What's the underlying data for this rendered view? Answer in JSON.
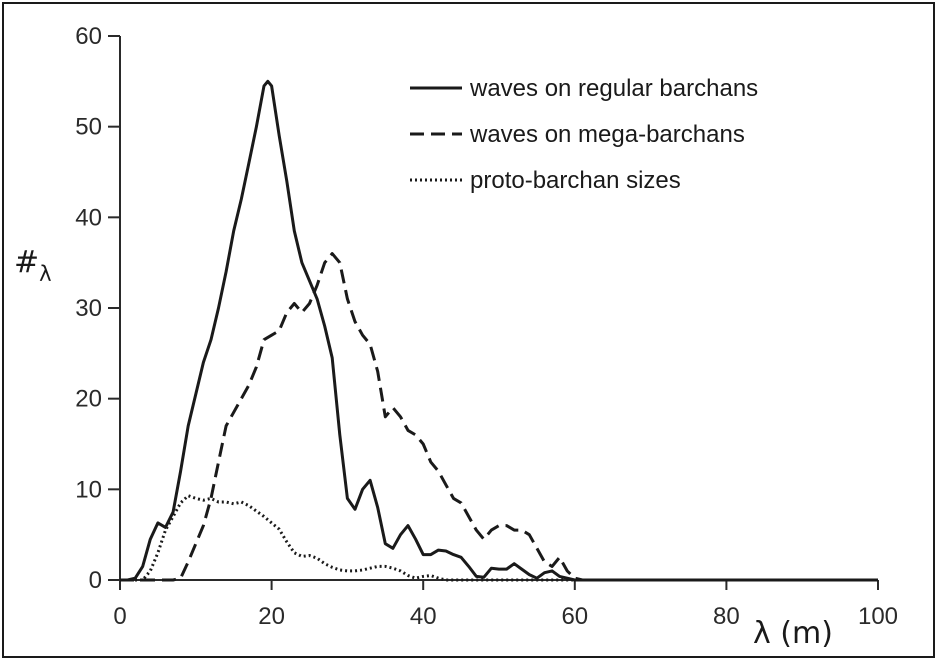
{
  "chart_data": {
    "type": "line",
    "xlabel": "λ (m)",
    "ylabel": "#",
    "ylabel_subscript": "λ",
    "xlim": [
      0,
      100
    ],
    "ylim": [
      0,
      60
    ],
    "xticks": [
      0,
      20,
      40,
      60,
      80,
      100
    ],
    "yticks": [
      0,
      10,
      20,
      30,
      40,
      50,
      60
    ],
    "grid": false,
    "legend_position": "top-right",
    "series": [
      {
        "name": "waves on regular barchans",
        "style": "solid",
        "x": [
          0,
          1,
          2,
          3,
          4,
          5,
          6,
          7,
          8,
          9,
          10,
          11,
          12,
          13,
          14,
          15,
          16,
          17,
          18,
          19,
          19.5,
          20,
          21,
          22,
          23,
          24,
          25,
          26,
          27,
          28,
          29,
          30,
          31,
          32,
          33,
          34,
          35,
          36,
          37,
          38,
          39,
          40,
          41,
          42,
          43,
          44,
          45,
          46,
          47,
          48,
          49,
          50,
          51,
          52,
          53,
          54,
          55,
          56,
          57,
          58,
          59,
          60,
          61,
          62,
          63,
          64,
          100
        ],
        "values": [
          0,
          0,
          0.2,
          1.5,
          4.5,
          6.3,
          5.8,
          7.5,
          12,
          17,
          20.5,
          24,
          26.5,
          30,
          34,
          38.5,
          42,
          46,
          50,
          54.5,
          55,
          54.5,
          49,
          44,
          38.5,
          35,
          33,
          31,
          28,
          24.5,
          16,
          9,
          7.8,
          10,
          11,
          8,
          4,
          3.5,
          5,
          6,
          4.5,
          2.8,
          2.8,
          3.3,
          3.2,
          2.8,
          2.5,
          1.5,
          0.4,
          0.3,
          1.3,
          1.2,
          1.2,
          1.8,
          1.2,
          0.6,
          0.2,
          0.8,
          1.0,
          0.4,
          0.2,
          0,
          0,
          0,
          0,
          0,
          0
        ]
      },
      {
        "name": "waves on mega-barchans",
        "style": "dashed",
        "x": [
          0,
          7,
          8,
          9,
          10,
          11,
          12,
          13,
          14,
          15,
          16,
          17,
          18,
          19,
          20,
          21,
          22,
          23,
          24,
          25,
          26,
          27,
          28,
          29,
          30,
          31,
          32,
          33,
          34,
          35,
          36,
          37,
          38,
          39,
          40,
          41,
          42,
          43,
          44,
          45,
          46,
          47,
          48,
          49,
          50,
          51,
          52,
          53,
          54,
          55,
          56,
          57,
          58,
          59,
          60,
          61,
          62,
          63,
          64,
          100
        ],
        "values": [
          0,
          0,
          0.2,
          2,
          4,
          6,
          9,
          13,
          17,
          18.5,
          20,
          21.5,
          23.5,
          26.5,
          27,
          27.5,
          29.5,
          30.5,
          29.5,
          30.5,
          32.5,
          35,
          36,
          35,
          31,
          28.5,
          27,
          26,
          23,
          18,
          19,
          18,
          16.5,
          16,
          15,
          13,
          12,
          10.5,
          9,
          8.5,
          7,
          5.5,
          4.5,
          5.5,
          6,
          6,
          5.5,
          5.5,
          5,
          3.5,
          2,
          1.5,
          2.5,
          1,
          0.2,
          0,
          0,
          0,
          0,
          0
        ]
      },
      {
        "name": "proto-barchan sizes",
        "style": "dotted",
        "x": [
          0,
          3,
          4,
          5,
          6,
          7,
          8,
          9,
          10,
          11,
          12,
          13,
          14,
          15,
          16,
          17,
          18,
          19,
          20,
          21,
          22,
          23,
          24,
          25,
          26,
          27,
          28,
          29,
          30,
          31,
          32,
          33,
          34,
          35,
          36,
          37,
          38,
          39,
          40,
          41,
          42,
          43,
          44,
          100
        ],
        "values": [
          0,
          0,
          1,
          3,
          5.5,
          7,
          8.5,
          9.3,
          9,
          8.8,
          9,
          8.6,
          8.6,
          8.4,
          8.6,
          8.2,
          7.6,
          7,
          6.3,
          5.6,
          4.2,
          3,
          2.6,
          2.7,
          2.4,
          1.8,
          1.4,
          1.1,
          1.0,
          1.0,
          1.1,
          1.3,
          1.5,
          1.5,
          1.3,
          1.0,
          0.5,
          0.2,
          0.4,
          0.5,
          0.2,
          0,
          0,
          0
        ]
      }
    ]
  }
}
